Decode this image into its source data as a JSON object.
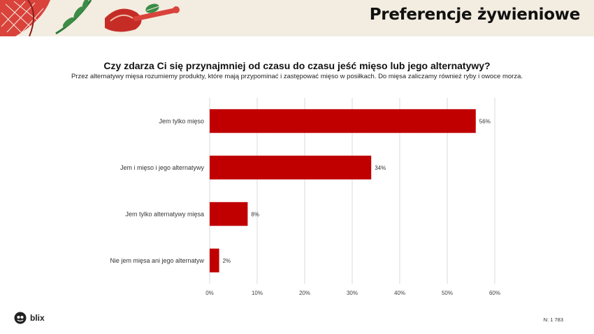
{
  "header": {
    "title": "Preferencje żywieniowe"
  },
  "survey": {
    "question": "Czy zdarza Ci się przynajmniej od czasu do czasu jeść mięso lub jego alternatywy?",
    "note": "Przez alternatywy mięsa rozumiemy produkty, które mają przypominać i zastępować mięso w posiłkach. Do mięsa zaliczamy również ryby i owoce morza."
  },
  "chart_data": {
    "type": "bar",
    "orientation": "horizontal",
    "categories": [
      "Jem tylko mięso",
      "Jem i mięso i jego alternatywy",
      "Jem tylko alternatywy mięsa",
      "Nie jem mięsa ani jego alternatyw"
    ],
    "values": [
      56,
      34,
      8,
      2
    ],
    "value_labels": [
      "56%",
      "34%",
      "8%",
      "2%"
    ],
    "xlim": [
      0,
      60
    ],
    "xticks": [
      "0%",
      "10%",
      "20%",
      "30%",
      "40%",
      "50%",
      "60%"
    ],
    "grid": true,
    "bar_color": "#c00000"
  },
  "footer": {
    "logo_text": "blix",
    "sample_size": "N: 1 783"
  },
  "colors": {
    "accent": "#c00000",
    "banner_bg": "#f3ece0"
  }
}
